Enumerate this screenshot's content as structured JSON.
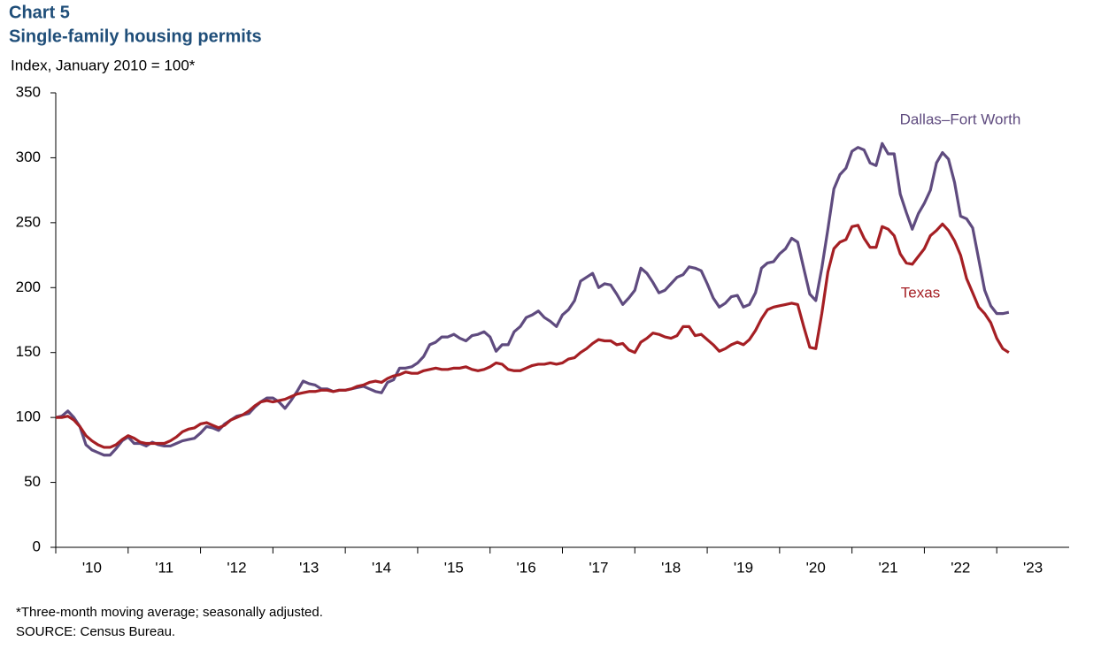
{
  "chart_data": {
    "type": "line",
    "title": "Chart 5",
    "subtitle": "Single-family housing permits",
    "y_axis_label": "Index, January 2010 = 100*",
    "footnotes": [
      "*Three-month moving average; seasonally adjusted.",
      "SOURCE: Census Bureau."
    ],
    "xlim": [
      2010,
      2024
    ],
    "xticks": [
      {
        "value": 2010.5,
        "label": "'10"
      },
      {
        "value": 2011.5,
        "label": "'11"
      },
      {
        "value": 2012.5,
        "label": "'12"
      },
      {
        "value": 2013.5,
        "label": "'13"
      },
      {
        "value": 2014.5,
        "label": "'14"
      },
      {
        "value": 2015.5,
        "label": "'15"
      },
      {
        "value": 2016.5,
        "label": "'16"
      },
      {
        "value": 2017.5,
        "label": "'17"
      },
      {
        "value": 2018.5,
        "label": "'18"
      },
      {
        "value": 2019.5,
        "label": "'19"
      },
      {
        "value": 2020.5,
        "label": "'20"
      },
      {
        "value": 2021.5,
        "label": "'21"
      },
      {
        "value": 2022.5,
        "label": "'22"
      },
      {
        "value": 2023.5,
        "label": "'23"
      }
    ],
    "ylim": [
      0,
      350
    ],
    "yticks": [
      0,
      50,
      100,
      150,
      200,
      250,
      300,
      350
    ],
    "x": [
      2010,
      2010.083,
      2010.167,
      2010.25,
      2010.333,
      2010.417,
      2010.5,
      2010.583,
      2010.667,
      2010.75,
      2010.833,
      2010.917,
      2011,
      2011.083,
      2011.167,
      2011.25,
      2011.333,
      2011.417,
      2011.5,
      2011.583,
      2011.667,
      2011.75,
      2011.833,
      2011.917,
      2012,
      2012.083,
      2012.167,
      2012.25,
      2012.333,
      2012.417,
      2012.5,
      2012.583,
      2012.667,
      2012.75,
      2012.833,
      2012.917,
      2013,
      2013.083,
      2013.167,
      2013.25,
      2013.333,
      2013.417,
      2013.5,
      2013.583,
      2013.667,
      2013.75,
      2013.833,
      2013.917,
      2014,
      2014.083,
      2014.167,
      2014.25,
      2014.333,
      2014.417,
      2014.5,
      2014.583,
      2014.667,
      2014.75,
      2014.833,
      2014.917,
      2015,
      2015.083,
      2015.167,
      2015.25,
      2015.333,
      2015.417,
      2015.5,
      2015.583,
      2015.667,
      2015.75,
      2015.833,
      2015.917,
      2016,
      2016.083,
      2016.167,
      2016.25,
      2016.333,
      2016.417,
      2016.5,
      2016.583,
      2016.667,
      2016.75,
      2016.833,
      2016.917,
      2017,
      2017.083,
      2017.167,
      2017.25,
      2017.333,
      2017.417,
      2017.5,
      2017.583,
      2017.667,
      2017.75,
      2017.833,
      2017.917,
      2018,
      2018.083,
      2018.167,
      2018.25,
      2018.333,
      2018.417,
      2018.5,
      2018.583,
      2018.667,
      2018.75,
      2018.833,
      2018.917,
      2019,
      2019.083,
      2019.167,
      2019.25,
      2019.333,
      2019.417,
      2019.5,
      2019.583,
      2019.667,
      2019.75,
      2019.833,
      2019.917,
      2020,
      2020.083,
      2020.167,
      2020.25,
      2020.333,
      2020.417,
      2020.5,
      2020.583,
      2020.667,
      2020.75,
      2020.833,
      2020.917,
      2021,
      2021.083,
      2021.167,
      2021.25,
      2021.333,
      2021.417,
      2021.5,
      2021.583,
      2021.667,
      2021.75,
      2021.833,
      2021.917,
      2022,
      2022.083,
      2022.167,
      2022.25,
      2022.333,
      2022.417,
      2022.5,
      2022.583,
      2022.667,
      2022.75,
      2022.833,
      2022.917,
      2023,
      2023.083,
      2023.167
    ],
    "series": [
      {
        "name": "Dallas–Fort Worth",
        "color": "#5f4b7f",
        "values": [
          100,
          101,
          105,
          100,
          93,
          79,
          75,
          73,
          71,
          71,
          76,
          82,
          85,
          80,
          80,
          78,
          81,
          79,
          78,
          78,
          80,
          82,
          83,
          84,
          88,
          93,
          92,
          90,
          95,
          98,
          101,
          102,
          103,
          108,
          112,
          115,
          115,
          112,
          107,
          113,
          120,
          128,
          126,
          125,
          122,
          122,
          120,
          121,
          121,
          122,
          123,
          124,
          122,
          120,
          119,
          127,
          129,
          138,
          138,
          139,
          142,
          147,
          156,
          158,
          162,
          162,
          164,
          161,
          159,
          163,
          164,
          166,
          162,
          151,
          156,
          156,
          166,
          170,
          177,
          179,
          182,
          177,
          174,
          170,
          179,
          183,
          190,
          205,
          208,
          211,
          200,
          203,
          202,
          195,
          187,
          192,
          198,
          215,
          211,
          204,
          196,
          198,
          203,
          208,
          210,
          216,
          215,
          213,
          203,
          192,
          185,
          188,
          193,
          194,
          185,
          187,
          196,
          215,
          219,
          220,
          226,
          230,
          238,
          235,
          215,
          195,
          190,
          215,
          245,
          276,
          287,
          292,
          305,
          308,
          306,
          296,
          294,
          311,
          303,
          303,
          272,
          258,
          245,
          257,
          265,
          275,
          296,
          304,
          299,
          281,
          255,
          253,
          246,
          222,
          198,
          186,
          180,
          180,
          181
        ]
      },
      {
        "name": "Texas",
        "color": "#a51f24",
        "values": [
          100,
          100,
          101,
          98,
          93,
          86,
          82,
          79,
          77,
          77,
          79,
          83,
          86,
          84,
          81,
          80,
          80,
          80,
          80,
          82,
          85,
          89,
          91,
          92,
          95,
          96,
          94,
          92,
          94,
          98,
          100,
          102,
          105,
          109,
          112,
          113,
          112,
          113,
          114,
          116,
          118,
          119,
          120,
          120,
          121,
          121,
          120,
          121,
          121,
          122,
          124,
          125,
          127,
          128,
          127,
          130,
          132,
          133,
          135,
          134,
          134,
          136,
          137,
          138,
          137,
          137,
          138,
          138,
          139,
          137,
          136,
          137,
          139,
          142,
          141,
          137,
          136,
          136,
          138,
          140,
          141,
          141,
          142,
          141,
          142,
          145,
          146,
          150,
          153,
          157,
          160,
          159,
          159,
          156,
          157,
          152,
          150,
          158,
          161,
          165,
          164,
          162,
          161,
          163,
          170,
          170,
          163,
          164,
          160,
          156,
          151,
          153,
          156,
          158,
          156,
          160,
          167,
          176,
          183,
          185,
          186,
          187,
          188,
          187,
          170,
          154,
          153,
          180,
          212,
          230,
          235,
          237,
          247,
          248,
          238,
          231,
          231,
          247,
          245,
          240,
          226,
          219,
          218,
          224,
          230,
          240,
          244,
          249,
          244,
          236,
          225,
          207,
          196,
          185,
          180,
          173,
          161,
          153,
          150
        ]
      }
    ]
  }
}
